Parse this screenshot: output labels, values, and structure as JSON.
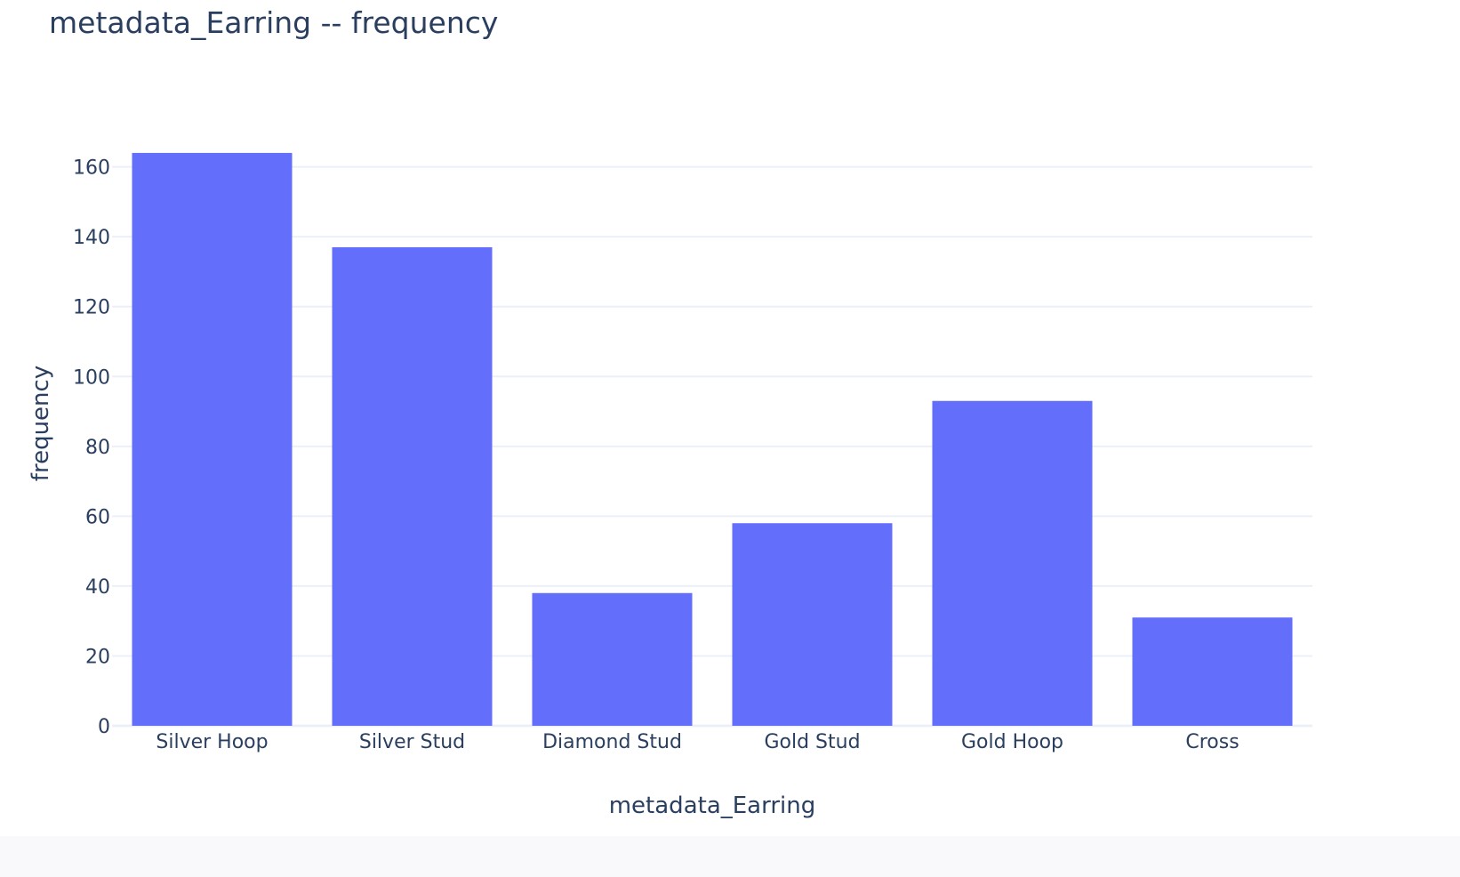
{
  "chart_data": {
    "type": "bar",
    "title": "metadata_Earring -- frequency",
    "xlabel": "metadata_Earring",
    "ylabel": "frequency",
    "categories": [
      "Silver Hoop",
      "Silver Stud",
      "Diamond Stud",
      "Gold Stud",
      "Gold Hoop",
      "Cross"
    ],
    "values": [
      164,
      137,
      38,
      58,
      93,
      31
    ],
    "ylim": [
      0,
      165
    ],
    "yticks": [
      0,
      20,
      40,
      60,
      80,
      100,
      120,
      140,
      160
    ],
    "grid": true,
    "bar_color": "#636efa",
    "grid_color": "#ebf0f8"
  }
}
